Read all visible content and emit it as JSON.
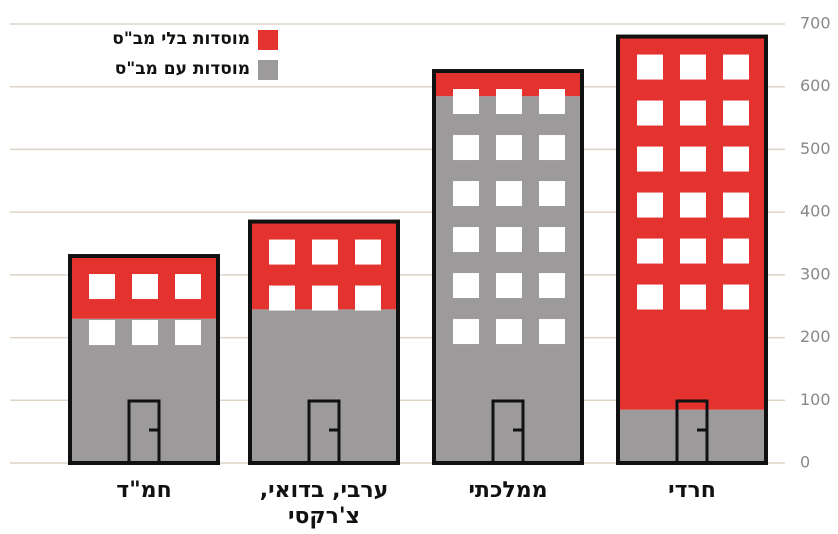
{
  "chart_data": {
    "type": "bar",
    "stacked": true,
    "categories": [
      "חמ\"ד",
      "ערבי, בדואי, צ'רקסי",
      "ממלכתי",
      "חרדי"
    ],
    "series": [
      {
        "name": "מוסדות עם מב\"ס",
        "color": "#9d9a9b",
        "values": [
          230,
          245,
          585,
          85
        ]
      },
      {
        "name": "מוסדות בלי מב\"ס",
        "color": "#e4332e",
        "values": [
          100,
          140,
          40,
          595
        ]
      }
    ],
    "ylim": [
      0,
      700
    ],
    "yticks": [
      0,
      100,
      200,
      300,
      400,
      500,
      600,
      700
    ],
    "grid": true,
    "legend": "top-left"
  }
}
